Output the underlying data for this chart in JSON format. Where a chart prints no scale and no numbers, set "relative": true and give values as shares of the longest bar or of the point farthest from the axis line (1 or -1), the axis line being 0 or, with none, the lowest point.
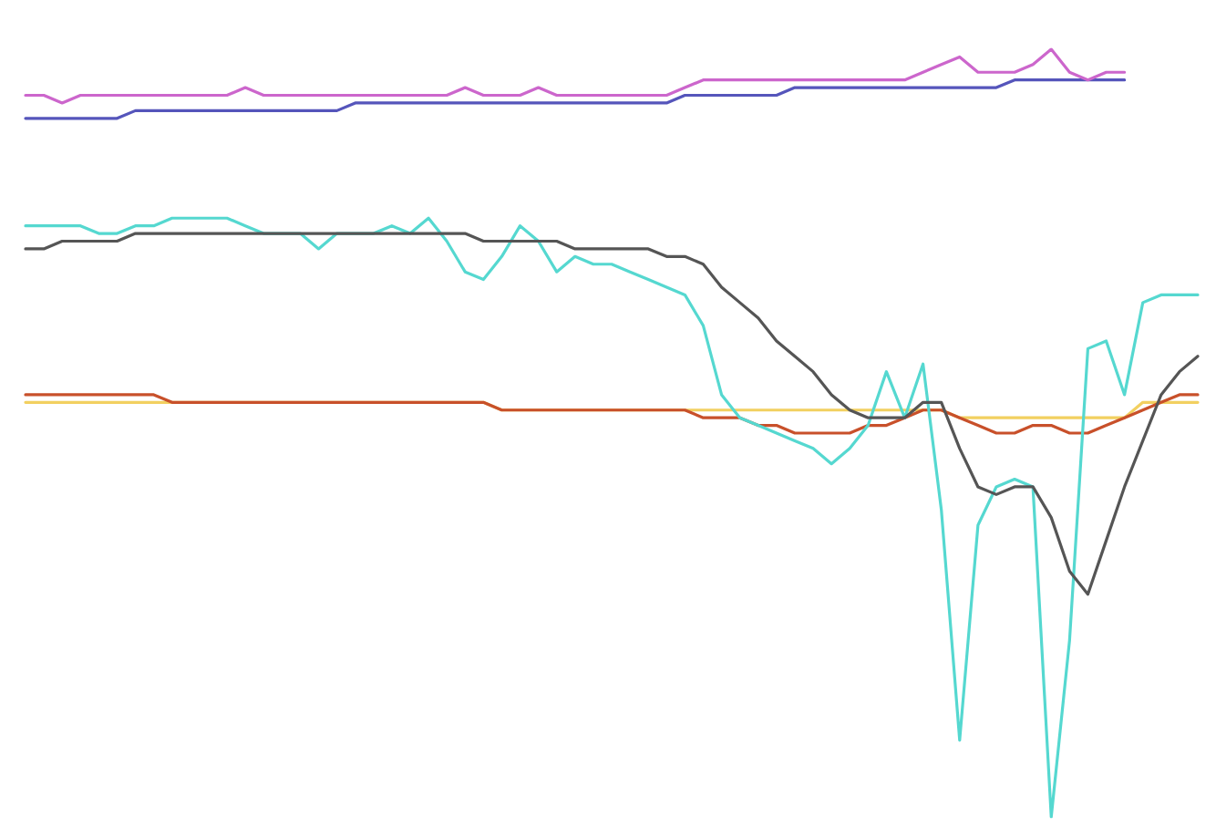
{
  "chart_data": {
    "type": "line",
    "relative": true,
    "marker": "none",
    "line_style": "solid",
    "categories": [
      null,
      null,
      null,
      null,
      null,
      null,
      null,
      null,
      null,
      null,
      null,
      null,
      null,
      null,
      null,
      null,
      null,
      null,
      null,
      null,
      null,
      null,
      null,
      null,
      null,
      null,
      null,
      null,
      null,
      null,
      null,
      null,
      null,
      null,
      null,
      null,
      null,
      null,
      null,
      null,
      null,
      null,
      null,
      null,
      null,
      null,
      null,
      null,
      null,
      null,
      null,
      null,
      null,
      null,
      null,
      null,
      null,
      null,
      null,
      null,
      null,
      null,
      null,
      null,
      null
    ],
    "series": [
      {
        "color": "#f2d060",
        "values": [
          0.54,
          0.54,
          0.54,
          0.54,
          0.54,
          0.54,
          0.54,
          0.54,
          0.54,
          0.54,
          0.54,
          0.54,
          0.54,
          0.54,
          0.54,
          0.54,
          0.54,
          0.54,
          0.54,
          0.54,
          0.54,
          0.54,
          0.54,
          0.54,
          0.54,
          0.54,
          0.53,
          0.53,
          0.53,
          0.53,
          0.53,
          0.53,
          0.53,
          0.53,
          0.53,
          0.53,
          0.53,
          0.53,
          0.53,
          0.53,
          0.53,
          0.53,
          0.53,
          0.53,
          0.53,
          0.53,
          0.53,
          0.53,
          0.53,
          0.53,
          0.53,
          0.52,
          0.52,
          0.52,
          0.52,
          0.52,
          0.52,
          0.52,
          0.52,
          0.52,
          0.52,
          0.54,
          0.54,
          0.54,
          0.54
        ]
      },
      {
        "color": "#c8502a",
        "values": [
          0.55,
          0.55,
          0.55,
          0.55,
          0.55,
          0.55,
          0.55,
          0.55,
          0.54,
          0.54,
          0.54,
          0.54,
          0.54,
          0.54,
          0.54,
          0.54,
          0.54,
          0.54,
          0.54,
          0.54,
          0.54,
          0.54,
          0.54,
          0.54,
          0.54,
          0.54,
          0.53,
          0.53,
          0.53,
          0.53,
          0.53,
          0.53,
          0.53,
          0.53,
          0.53,
          0.53,
          0.53,
          0.52,
          0.52,
          0.52,
          0.51,
          0.51,
          0.5,
          0.5,
          0.5,
          0.5,
          0.51,
          0.51,
          0.52,
          0.53,
          0.53,
          0.52,
          0.51,
          0.5,
          0.5,
          0.51,
          0.51,
          0.5,
          0.5,
          0.51,
          0.52,
          0.53,
          0.54,
          0.55,
          0.55
        ]
      },
      {
        "color": "#55d8d0",
        "values": [
          0.77,
          0.77,
          0.77,
          0.77,
          0.76,
          0.76,
          0.77,
          0.77,
          0.78,
          0.78,
          0.78,
          0.78,
          0.77,
          0.76,
          0.76,
          0.76,
          0.74,
          0.76,
          0.76,
          0.76,
          0.77,
          0.76,
          0.78,
          0.75,
          0.71,
          0.7,
          0.73,
          0.77,
          0.75,
          0.71,
          0.73,
          0.72,
          0.72,
          0.71,
          0.7,
          0.69,
          0.68,
          0.64,
          0.55,
          0.52,
          0.51,
          0.5,
          0.49,
          0.48,
          0.46,
          0.48,
          0.51,
          0.58,
          0.52,
          0.59,
          0.4,
          0.1,
          0.38,
          0.43,
          0.44,
          0.43,
          0,
          0.23,
          0.61,
          0.62,
          0.55,
          0.67,
          0.68,
          0.68,
          0.68
        ]
      },
      {
        "color": "#555555",
        "values": [
          0.74,
          0.74,
          0.75,
          0.75,
          0.75,
          0.75,
          0.76,
          0.76,
          0.76,
          0.76,
          0.76,
          0.76,
          0.76,
          0.76,
          0.76,
          0.76,
          0.76,
          0.76,
          0.76,
          0.76,
          0.76,
          0.76,
          0.76,
          0.76,
          0.76,
          0.75,
          0.75,
          0.75,
          0.75,
          0.75,
          0.74,
          0.74,
          0.74,
          0.74,
          0.74,
          0.73,
          0.73,
          0.72,
          0.69,
          0.67,
          0.65,
          0.62,
          0.6,
          0.58,
          0.55,
          0.53,
          0.52,
          0.52,
          0.52,
          0.54,
          0.54,
          0.48,
          0.43,
          0.42,
          0.43,
          0.43,
          0.39,
          0.32,
          0.29,
          0.36,
          0.43,
          0.49,
          0.55,
          0.58,
          0.6
        ]
      },
      {
        "color": "#5555bb",
        "values": [
          0.91,
          0.91,
          0.91,
          0.91,
          0.91,
          0.91,
          0.92,
          0.92,
          0.92,
          0.92,
          0.92,
          0.92,
          0.92,
          0.92,
          0.92,
          0.92,
          0.92,
          0.92,
          0.93,
          0.93,
          0.93,
          0.93,
          0.93,
          0.93,
          0.93,
          0.93,
          0.93,
          0.93,
          0.93,
          0.93,
          0.93,
          0.93,
          0.93,
          0.93,
          0.93,
          0.93,
          0.94,
          0.94,
          0.94,
          0.94,
          0.94,
          0.94,
          0.95,
          0.95,
          0.95,
          0.95,
          0.95,
          0.95,
          0.95,
          0.95,
          0.95,
          0.95,
          0.95,
          0.95,
          0.96,
          0.96,
          0.96,
          0.96,
          0.96,
          0.96,
          0.96,
          null,
          null,
          null,
          null
        ]
      },
      {
        "color": "#cc66cc",
        "values": [
          0.94,
          0.94,
          0.93,
          0.94,
          0.94,
          0.94,
          0.94,
          0.94,
          0.94,
          0.94,
          0.94,
          0.94,
          0.95,
          0.94,
          0.94,
          0.94,
          0.94,
          0.94,
          0.94,
          0.94,
          0.94,
          0.94,
          0.94,
          0.94,
          0.95,
          0.94,
          0.94,
          0.94,
          0.95,
          0.94,
          0.94,
          0.94,
          0.94,
          0.94,
          0.94,
          0.94,
          0.95,
          0.96,
          0.96,
          0.96,
          0.96,
          0.96,
          0.96,
          0.96,
          0.96,
          0.96,
          0.96,
          0.96,
          0.96,
          0.97,
          0.98,
          0.99,
          0.97,
          0.97,
          0.97,
          0.98,
          1,
          0.97,
          0.96,
          0.97,
          0.97,
          null,
          null,
          null,
          null
        ]
      }
    ]
  }
}
